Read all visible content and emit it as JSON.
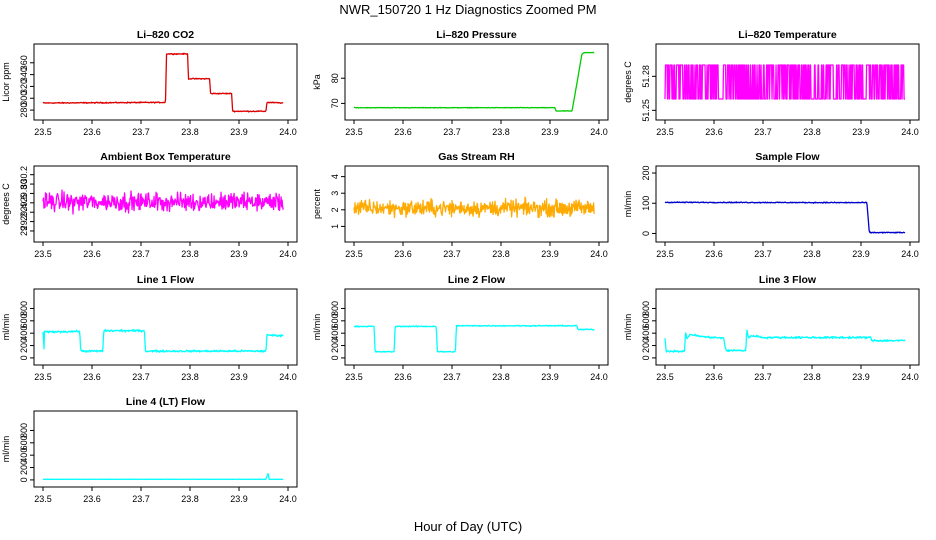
{
  "title": "NWR_150720  1 Hz Diagnostics Zoomed PM",
  "xlabel": "Hour of Day (UTC)",
  "chart_data": [
    {
      "type": "line",
      "title": "Li–820 CO2",
      "ylabel": "Licor ppm",
      "color": "#dd0000",
      "xlim": [
        23.5,
        24.0
      ],
      "ylim": [
        270,
        385
      ],
      "xticks": [
        "23.5",
        "23.6",
        "23.7",
        "23.8",
        "23.9",
        "24.0"
      ],
      "yticks": [
        280,
        300,
        320,
        340,
        360
      ],
      "noise": 0.8,
      "series": [
        {
          "x": [
            23.5,
            23.75,
            23.752,
            23.795,
            23.797,
            23.84,
            23.842,
            23.885,
            23.887,
            23.955,
            23.957,
            23.99
          ],
          "y": [
            292,
            293,
            375,
            375,
            333,
            333,
            308,
            308,
            278,
            278,
            293,
            292
          ]
        }
      ]
    },
    {
      "type": "line",
      "title": "Li–820 Pressure",
      "ylabel": "kPa",
      "color": "#00cc00",
      "xlim": [
        23.5,
        24.0
      ],
      "ylim": [
        65,
        92
      ],
      "xticks": [
        "23.5",
        "23.6",
        "23.7",
        "23.8",
        "23.9",
        "24.0"
      ],
      "yticks": [
        70,
        80
      ],
      "noise": 0.1,
      "series": [
        {
          "x": [
            23.5,
            23.91,
            23.912,
            23.945,
            23.955,
            23.965,
            23.97,
            23.99
          ],
          "y": [
            68.3,
            68.3,
            67.0,
            67.0,
            78,
            89.5,
            90.2,
            90.2
          ]
        }
      ]
    },
    {
      "type": "line",
      "title": "Li–820 Temperature",
      "ylabel": "degrees C",
      "color": "#ff00ff",
      "xlim": [
        23.5,
        24.0
      ],
      "ylim": [
        51.245,
        51.305
      ],
      "xticks": [
        "23.5",
        "23.6",
        "23.7",
        "23.8",
        "23.9",
        "24.0"
      ],
      "yticks": [
        51.25,
        51.28
      ],
      "noise": 0,
      "toggle": [
        51.26,
        51.29
      ],
      "series": [
        {
          "x": [
            23.5,
            23.99
          ],
          "y": [
            51.27,
            51.27
          ]
        }
      ]
    },
    {
      "type": "line",
      "title": "Ambient Box Temperature",
      "ylabel": "degrees C",
      "color": "#ff00ff",
      "xlim": [
        23.5,
        24.0
      ],
      "ylim": [
        28.85,
        30.3
      ],
      "xticks": [
        "23.5",
        "23.6",
        "23.7",
        "23.8",
        "23.9",
        "24.0"
      ],
      "yticks": [
        29.0,
        29.2,
        29.4,
        29.6,
        29.8,
        30.0,
        30.2
      ],
      "noise": 0.18,
      "series": [
        {
          "x": [
            23.5,
            23.99
          ],
          "y": [
            29.62,
            29.62
          ]
        }
      ]
    },
    {
      "type": "line",
      "title": "Gas Stream RH",
      "ylabel": "percent",
      "color": "#ffaa00",
      "xlim": [
        23.5,
        24.0
      ],
      "ylim": [
        0.3,
        4.4
      ],
      "xticks": [
        "23.5",
        "23.6",
        "23.7",
        "23.8",
        "23.9",
        "24.0"
      ],
      "yticks": [
        1,
        2,
        3,
        4
      ],
      "noise": 0.45,
      "series": [
        {
          "x": [
            23.5,
            23.99
          ],
          "y": [
            2.1,
            2.1
          ]
        }
      ]
    },
    {
      "type": "line",
      "title": "Sample Flow",
      "ylabel": "ml/min",
      "color": "#0000cc",
      "xlim": [
        23.5,
        24.0
      ],
      "ylim": [
        -15,
        210
      ],
      "xticks": [
        "23.5",
        "23.6",
        "23.7",
        "23.8",
        "23.9",
        "24.0"
      ],
      "yticks": [
        0,
        100,
        200
      ],
      "noise": 1.5,
      "series": [
        {
          "x": [
            23.5,
            23.91,
            23.912,
            23.917,
            23.99
          ],
          "y": [
            103,
            102,
            102,
            3,
            3
          ]
        }
      ]
    },
    {
      "type": "line",
      "title": "Line 1 Flow",
      "ylabel": "ml/min",
      "color": "#00ffff",
      "xlim": [
        23.5,
        24.0
      ],
      "ylim": [
        -50,
        1050
      ],
      "xticks": [
        "23.5",
        "23.6",
        "23.7",
        "23.8",
        "23.9",
        "24.0"
      ],
      "yticks": [
        0,
        200,
        400,
        600,
        800
      ],
      "noise": 15,
      "series": [
        {
          "x": [
            23.5,
            23.502,
            23.503,
            23.575,
            23.577,
            23.622,
            23.624,
            23.707,
            23.709,
            23.955,
            23.957,
            23.99
          ],
          "y": [
            420,
            140,
            420,
            430,
            110,
            110,
            440,
            440,
            110,
            110,
            370,
            360
          ]
        }
      ]
    },
    {
      "type": "line",
      "title": "Line 2 Flow",
      "ylabel": "ml/min",
      "color": "#00ffff",
      "xlim": [
        23.5,
        24.0
      ],
      "ylim": [
        -50,
        1050
      ],
      "xticks": [
        "23.5",
        "23.6",
        "23.7",
        "23.8",
        "23.9",
        "24.0"
      ],
      "yticks": [
        0,
        200,
        400,
        600,
        800
      ],
      "noise": 8,
      "series": [
        {
          "x": [
            23.5,
            23.541,
            23.543,
            23.582,
            23.584,
            23.668,
            23.67,
            23.707,
            23.709,
            23.955,
            23.957,
            23.99
          ],
          "y": [
            510,
            510,
            100,
            100,
            510,
            510,
            100,
            100,
            520,
            520,
            460,
            460
          ]
        }
      ]
    },
    {
      "type": "line",
      "title": "Line 3 Flow",
      "ylabel": "ml/min",
      "color": "#00ffff",
      "xlim": [
        23.5,
        24.0
      ],
      "ylim": [
        -50,
        1050
      ],
      "xticks": [
        "23.5",
        "23.6",
        "23.7",
        "23.8",
        "23.9",
        "24.0"
      ],
      "yticks": [
        0,
        200,
        400,
        600,
        800
      ],
      "noise": 15,
      "series": [
        {
          "x": [
            23.5,
            23.502,
            23.503,
            23.54,
            23.542,
            23.545,
            23.55,
            23.58,
            23.62,
            23.622,
            23.625,
            23.665,
            23.667,
            23.67,
            23.68,
            23.7,
            23.92,
            23.922,
            23.99
          ],
          "y": [
            330,
            130,
            110,
            110,
            420,
            300,
            380,
            340,
            320,
            200,
            120,
            120,
            470,
            330,
            360,
            330,
            330,
            280,
            280
          ]
        }
      ]
    },
    {
      "type": "line",
      "title": "Line 4 (LT) Flow",
      "ylabel": "ml/min",
      "color": "#00ffff",
      "xlim": [
        23.5,
        24.0
      ],
      "ylim": [
        -50,
        1050
      ],
      "xticks": [
        "23.5",
        "23.6",
        "23.7",
        "23.8",
        "23.9",
        "24.0"
      ],
      "yticks": [
        0,
        200,
        400,
        600,
        800
      ],
      "noise": 2,
      "series": [
        {
          "x": [
            23.5,
            23.955,
            23.956,
            23.96,
            23.961,
            23.99
          ],
          "y": [
            10,
            10,
            40,
            110,
            10,
            10
          ]
        }
      ]
    }
  ]
}
